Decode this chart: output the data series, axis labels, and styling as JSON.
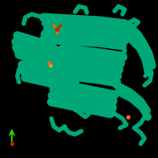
{
  "background_color": "#000000",
  "figure_size": [
    2.0,
    2.0
  ],
  "dpi": 100,
  "protein_color": "#00a878",
  "protein_outline_color": "#007a58",
  "ligand_color_red": "#cc2200",
  "ligand_color_orange": "#ff6600",
  "ligand_color_yellow": "#ffaa00",
  "axis_arrow_green": "#22cc00",
  "axis_arrow_blue": "#2244ff",
  "axis_dot_red": "#cc2200",
  "small_dot_green": "#00ff88",
  "small_dot_orange": "#ff8800"
}
